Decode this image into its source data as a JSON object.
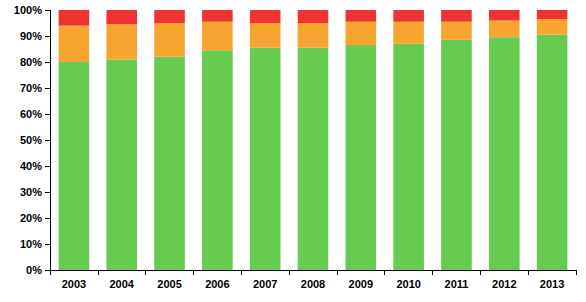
{
  "chart_data": {
    "type": "bar",
    "stacked": true,
    "grid": false,
    "categories": [
      "2003",
      "2004",
      "2005",
      "2006",
      "2007",
      "2008",
      "2009",
      "2010",
      "2011",
      "2012",
      "2013"
    ],
    "series": [
      {
        "color": "#66cc4f",
        "values": [
          80,
          81,
          82,
          84.5,
          85.5,
          85.5,
          86.5,
          87,
          88.5,
          89.5,
          90.5
        ]
      },
      {
        "color": "#f7a530",
        "values": [
          14,
          13.5,
          13,
          11,
          9.5,
          9.5,
          9,
          8.5,
          7,
          6.5,
          6
        ]
      },
      {
        "color": "#ee3333",
        "values": [
          6,
          5.5,
          5,
          4.5,
          5,
          5,
          4.5,
          4.5,
          4.5,
          4,
          3.5
        ]
      }
    ],
    "ylim": [
      0,
      100
    ],
    "yticks": [
      {
        "value": 0,
        "label": "0%"
      },
      {
        "value": 10,
        "label": "10%"
      },
      {
        "value": 20,
        "label": "20%"
      },
      {
        "value": 30,
        "label": "30%"
      },
      {
        "value": 40,
        "label": "40%"
      },
      {
        "value": 50,
        "label": "50%"
      },
      {
        "value": 60,
        "label": "60%"
      },
      {
        "value": 70,
        "label": "70%"
      },
      {
        "value": 80,
        "label": "80%"
      },
      {
        "value": 90,
        "label": "90%"
      },
      {
        "value": 100,
        "label": "100%"
      }
    ]
  }
}
